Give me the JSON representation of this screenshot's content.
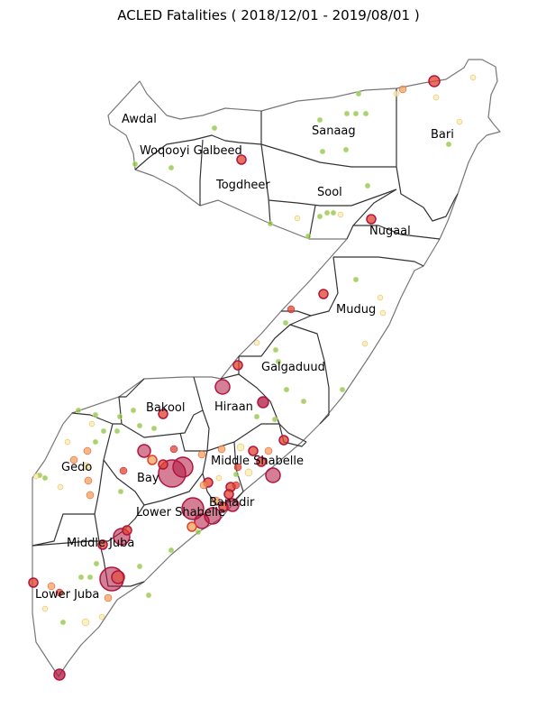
{
  "title": "ACLED Fatalities ( 2018/12/01 - 2019/08/01 )",
  "regions": [
    {
      "name": "Awdal"
    },
    {
      "name": "Woqooyi Galbeed"
    },
    {
      "name": "Togdheer"
    },
    {
      "name": "Sanaag"
    },
    {
      "name": "Sool"
    },
    {
      "name": "Bari"
    },
    {
      "name": "Nugaal"
    },
    {
      "name": "Mudug"
    },
    {
      "name": "Galgaduud"
    },
    {
      "name": "Hiraan"
    },
    {
      "name": "Bakool"
    },
    {
      "name": "Gedo"
    },
    {
      "name": "Bay"
    },
    {
      "name": "Middle Shabelle"
    },
    {
      "name": "Banadir"
    },
    {
      "name": "Lower Shabelle"
    },
    {
      "name": "Middle Juba"
    },
    {
      "name": "Lower Juba"
    }
  ],
  "colors": {
    "low": "#8bc34a",
    "low_mid": "#f3f0a8",
    "mid": "#f4a259",
    "high": "#e0432b",
    "very_high": "#b0153f",
    "outline": "#777777",
    "border": "#333333"
  }
}
